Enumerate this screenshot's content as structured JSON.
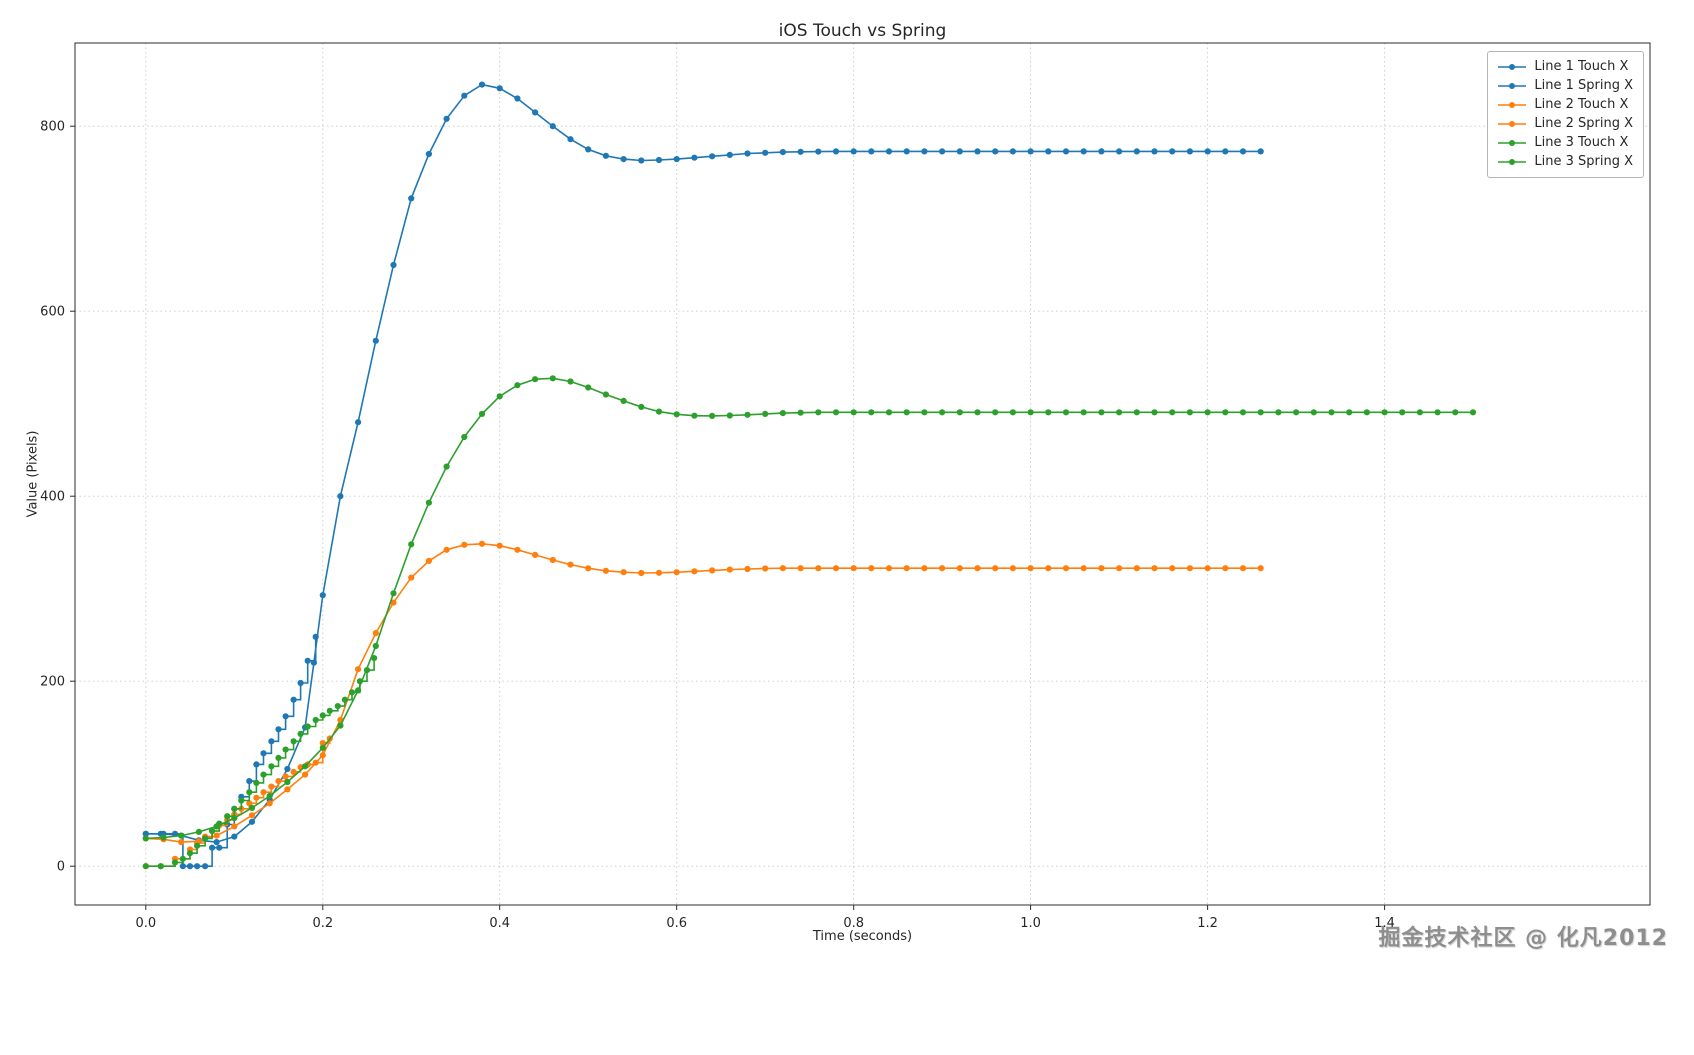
{
  "watermark": {
    "text": "掘金技术社区 @ 化凡2012"
  },
  "chart_data": {
    "type": "line",
    "title": "iOS Touch vs Spring",
    "xlabel": "Time (seconds)",
    "ylabel": "Value (Pixels)",
    "xlim": [
      -0.08,
      1.7
    ],
    "ylim": [
      -42,
      890
    ],
    "grid": true,
    "legend_position": "upper right",
    "x_ticks": [
      {
        "v": 0.0,
        "label": "0.0"
      },
      {
        "v": 0.2,
        "label": "0.2"
      },
      {
        "v": 0.4,
        "label": "0.4"
      },
      {
        "v": 0.6,
        "label": "0.6"
      },
      {
        "v": 0.8,
        "label": "0.8"
      },
      {
        "v": 1.0,
        "label": "1.0"
      },
      {
        "v": 1.2,
        "label": "1.2"
      },
      {
        "v": 1.4,
        "label": "1.4"
      }
    ],
    "y_ticks": [
      {
        "v": 0,
        "label": "0"
      },
      {
        "v": 200,
        "label": "200"
      },
      {
        "v": 400,
        "label": "400"
      },
      {
        "v": 600,
        "label": "600"
      },
      {
        "v": 800,
        "label": "800"
      }
    ],
    "series": [
      {
        "name": "Line 1 Touch X",
        "color": "#1f77b4",
        "step": true,
        "points": [
          [
            0.0,
            35
          ],
          [
            0.017,
            35
          ],
          [
            0.033,
            35
          ],
          [
            0.042,
            0
          ],
          [
            0.05,
            0
          ],
          [
            0.058,
            0
          ],
          [
            0.067,
            0
          ],
          [
            0.075,
            20
          ],
          [
            0.083,
            20
          ],
          [
            0.092,
            45
          ],
          [
            0.1,
            62
          ],
          [
            0.108,
            75
          ],
          [
            0.117,
            92
          ],
          [
            0.125,
            110
          ],
          [
            0.133,
            122
          ],
          [
            0.142,
            135
          ],
          [
            0.15,
            148
          ],
          [
            0.158,
            162
          ],
          [
            0.167,
            180
          ],
          [
            0.175,
            198
          ],
          [
            0.183,
            222
          ],
          [
            0.192,
            248
          ]
        ]
      },
      {
        "name": "Line 1 Spring X",
        "color": "#1f77b4",
        "step": false,
        "points": [
          [
            0.0,
            35
          ],
          [
            0.02,
            35
          ],
          [
            0.04,
            33
          ],
          [
            0.06,
            28
          ],
          [
            0.08,
            26
          ],
          [
            0.1,
            32
          ],
          [
            0.12,
            48
          ],
          [
            0.14,
            72
          ],
          [
            0.16,
            105
          ],
          [
            0.18,
            150
          ],
          [
            0.19,
            220
          ],
          [
            0.2,
            293
          ],
          [
            0.22,
            400
          ],
          [
            0.24,
            480
          ],
          [
            0.26,
            568
          ],
          [
            0.28,
            650
          ],
          [
            0.3,
            722
          ],
          [
            0.32,
            770
          ],
          [
            0.34,
            808
          ],
          [
            0.36,
            833
          ],
          [
            0.38,
            845
          ],
          [
            0.4,
            841
          ],
          [
            0.42,
            830
          ],
          [
            0.44,
            815
          ],
          [
            0.46,
            800
          ],
          [
            0.48,
            786
          ],
          [
            0.5,
            775
          ],
          [
            0.52,
            768
          ],
          [
            0.54,
            764.5
          ],
          [
            0.56,
            763
          ],
          [
            0.58,
            763.5
          ],
          [
            0.6,
            764.5
          ],
          [
            0.62,
            766
          ],
          [
            0.64,
            767.5
          ],
          [
            0.66,
            769
          ],
          [
            0.68,
            770.5
          ],
          [
            0.7,
            771.3
          ],
          [
            0.72,
            772
          ],
          [
            0.74,
            772.4
          ],
          [
            0.76,
            772.6
          ],
          [
            0.78,
            772.8
          ]
        ],
        "extend": {
          "to": 1.27,
          "dt": 0.02
        }
      },
      {
        "name": "Line 2 Touch X",
        "color": "#ff7f0e",
        "step": true,
        "points": [
          [
            0.0,
            0
          ],
          [
            0.017,
            0
          ],
          [
            0.033,
            8
          ],
          [
            0.05,
            18
          ],
          [
            0.058,
            25
          ],
          [
            0.067,
            32
          ],
          [
            0.075,
            38
          ],
          [
            0.083,
            44
          ],
          [
            0.092,
            50
          ],
          [
            0.1,
            56
          ],
          [
            0.108,
            62
          ],
          [
            0.117,
            68
          ],
          [
            0.125,
            74
          ],
          [
            0.133,
            80
          ],
          [
            0.142,
            86
          ],
          [
            0.15,
            92
          ],
          [
            0.158,
            97
          ],
          [
            0.167,
            102
          ],
          [
            0.175,
            107
          ],
          [
            0.183,
            110
          ],
          [
            0.192,
            112
          ],
          [
            0.2,
            133
          ],
          [
            0.208,
            138
          ]
        ]
      },
      {
        "name": "Line 2 Spring X",
        "color": "#ff7f0e",
        "step": false,
        "points": [
          [
            0.0,
            30
          ],
          [
            0.02,
            29
          ],
          [
            0.04,
            26
          ],
          [
            0.06,
            27
          ],
          [
            0.08,
            33
          ],
          [
            0.1,
            43
          ],
          [
            0.12,
            55
          ],
          [
            0.14,
            68
          ],
          [
            0.16,
            83
          ],
          [
            0.18,
            99
          ],
          [
            0.2,
            120
          ],
          [
            0.22,
            158
          ],
          [
            0.24,
            213
          ],
          [
            0.26,
            252
          ],
          [
            0.28,
            285
          ],
          [
            0.3,
            312
          ],
          [
            0.32,
            330
          ],
          [
            0.34,
            342
          ],
          [
            0.36,
            347.5
          ],
          [
            0.38,
            348.5
          ],
          [
            0.4,
            346.5
          ],
          [
            0.42,
            342
          ],
          [
            0.44,
            336.5
          ],
          [
            0.46,
            331
          ],
          [
            0.48,
            326
          ],
          [
            0.5,
            322
          ],
          [
            0.52,
            319.3
          ],
          [
            0.54,
            317.8
          ],
          [
            0.56,
            317
          ],
          [
            0.58,
            317.2
          ],
          [
            0.6,
            317.8
          ],
          [
            0.62,
            318.8
          ],
          [
            0.64,
            319.8
          ],
          [
            0.66,
            320.6
          ],
          [
            0.68,
            321.3
          ],
          [
            0.7,
            321.8
          ],
          [
            0.72,
            322.1
          ]
        ],
        "extend": {
          "to": 1.26,
          "dt": 0.02
        }
      },
      {
        "name": "Line 3 Touch X",
        "color": "#2ca02c",
        "step": true,
        "points": [
          [
            0.0,
            0
          ],
          [
            0.017,
            0
          ],
          [
            0.033,
            4
          ],
          [
            0.042,
            8
          ],
          [
            0.05,
            14
          ],
          [
            0.058,
            22
          ],
          [
            0.067,
            30
          ],
          [
            0.075,
            38
          ],
          [
            0.083,
            46
          ],
          [
            0.092,
            54
          ],
          [
            0.1,
            62
          ],
          [
            0.108,
            71
          ],
          [
            0.117,
            80
          ],
          [
            0.125,
            90
          ],
          [
            0.133,
            99
          ],
          [
            0.142,
            108
          ],
          [
            0.15,
            117
          ],
          [
            0.158,
            126
          ],
          [
            0.167,
            135
          ],
          [
            0.175,
            143
          ],
          [
            0.183,
            151
          ],
          [
            0.192,
            158
          ],
          [
            0.2,
            163
          ],
          [
            0.208,
            168
          ],
          [
            0.217,
            173
          ],
          [
            0.225,
            180
          ],
          [
            0.233,
            188
          ],
          [
            0.242,
            200
          ],
          [
            0.25,
            212
          ],
          [
            0.258,
            225
          ]
        ]
      },
      {
        "name": "Line 3 Spring X",
        "color": "#2ca02c",
        "step": false,
        "points": [
          [
            0.0,
            30
          ],
          [
            0.02,
            31
          ],
          [
            0.04,
            33
          ],
          [
            0.06,
            37
          ],
          [
            0.08,
            43
          ],
          [
            0.1,
            52
          ],
          [
            0.12,
            63
          ],
          [
            0.14,
            76
          ],
          [
            0.16,
            91
          ],
          [
            0.18,
            108
          ],
          [
            0.2,
            128
          ],
          [
            0.22,
            152
          ],
          [
            0.24,
            190
          ],
          [
            0.26,
            238
          ],
          [
            0.28,
            295
          ],
          [
            0.3,
            348
          ],
          [
            0.32,
            393
          ],
          [
            0.34,
            432
          ],
          [
            0.36,
            464
          ],
          [
            0.38,
            489
          ],
          [
            0.4,
            508
          ],
          [
            0.42,
            520
          ],
          [
            0.44,
            526.5
          ],
          [
            0.46,
            527.5
          ],
          [
            0.48,
            524
          ],
          [
            0.5,
            517.5
          ],
          [
            0.52,
            510
          ],
          [
            0.54,
            503
          ],
          [
            0.56,
            496.5
          ],
          [
            0.58,
            491.5
          ],
          [
            0.6,
            488.5
          ],
          [
            0.62,
            487
          ],
          [
            0.64,
            486.8
          ],
          [
            0.66,
            487.2
          ],
          [
            0.68,
            488
          ],
          [
            0.7,
            489
          ],
          [
            0.72,
            489.8
          ],
          [
            0.74,
            490.3
          ],
          [
            0.76,
            490.7
          ]
        ],
        "extend": {
          "to": 1.5,
          "dt": 0.02
        }
      }
    ]
  }
}
